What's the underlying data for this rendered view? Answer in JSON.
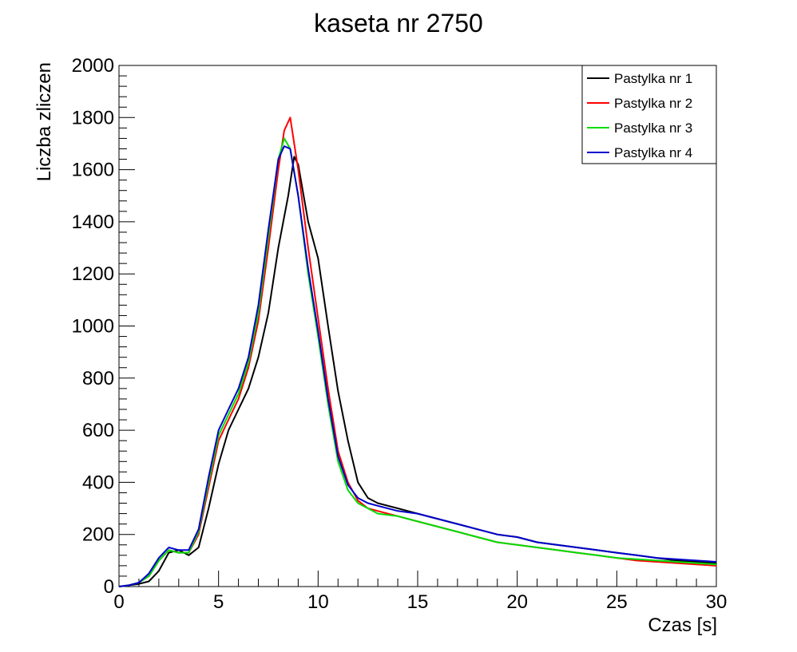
{
  "chart_data": {
    "type": "line",
    "title": "kaseta nr 2750",
    "xlabel": "Czas [s]",
    "ylabel": "Liczba zliczen",
    "xlim": [
      0,
      30
    ],
    "ylim": [
      0,
      2000
    ],
    "x_ticks": [
      0,
      5,
      10,
      15,
      20,
      25,
      30
    ],
    "y_ticks": [
      0,
      200,
      400,
      600,
      800,
      1000,
      1200,
      1400,
      1600,
      1800,
      2000
    ],
    "grid": false,
    "legend_position": "top-right",
    "series": [
      {
        "name": "Pastylka nr 1",
        "color": "#000000",
        "x": [
          0,
          0.5,
          1,
          1.5,
          2,
          2.5,
          3,
          3.5,
          4,
          4.5,
          5,
          5.5,
          6,
          6.5,
          7,
          7.5,
          8,
          8.5,
          8.8,
          9,
          9.5,
          10,
          10.5,
          11,
          11.5,
          12,
          12.5,
          13,
          14,
          15,
          16,
          17,
          18,
          19,
          20,
          21,
          22,
          23,
          24,
          25,
          26,
          27,
          28,
          29,
          30
        ],
        "y": [
          0,
          5,
          10,
          20,
          60,
          130,
          140,
          120,
          150,
          300,
          470,
          600,
          680,
          760,
          880,
          1050,
          1300,
          1500,
          1650,
          1620,
          1400,
          1260,
          1000,
          750,
          560,
          400,
          340,
          320,
          300,
          280,
          260,
          240,
          220,
          200,
          190,
          170,
          160,
          150,
          140,
          130,
          120,
          110,
          100,
          95,
          90
        ]
      },
      {
        "name": "Pastylka nr 2",
        "color": "#ff0000",
        "x": [
          0,
          0.5,
          1,
          1.5,
          2,
          2.5,
          3,
          3.5,
          4,
          4.5,
          5,
          5.5,
          6,
          6.5,
          7,
          7.5,
          8,
          8.3,
          8.6,
          9,
          9.5,
          10,
          10.5,
          11,
          11.5,
          12,
          12.5,
          13,
          14,
          15,
          16,
          17,
          18,
          19,
          20,
          21,
          22,
          23,
          24,
          25,
          26,
          27,
          28,
          29,
          30
        ],
        "y": [
          0,
          5,
          15,
          40,
          100,
          140,
          130,
          130,
          200,
          380,
          560,
          640,
          720,
          840,
          1020,
          1300,
          1600,
          1750,
          1800,
          1600,
          1300,
          1030,
          760,
          520,
          400,
          330,
          300,
          290,
          270,
          250,
          230,
          210,
          190,
          170,
          160,
          150,
          140,
          130,
          120,
          110,
          100,
          95,
          90,
          85,
          80
        ]
      },
      {
        "name": "Pastylka nr 3",
        "color": "#00dd00",
        "x": [
          0,
          0.5,
          1,
          1.5,
          2,
          2.5,
          3,
          3.5,
          4,
          4.5,
          5,
          5.5,
          6,
          6.5,
          7,
          7.5,
          8,
          8.3,
          8.6,
          9,
          9.5,
          10,
          10.5,
          11,
          11.5,
          12,
          12.5,
          13,
          14,
          15,
          16,
          17,
          18,
          19,
          20,
          21,
          22,
          23,
          24,
          25,
          26,
          27,
          28,
          29,
          30
        ],
        "y": [
          0,
          5,
          15,
          40,
          100,
          140,
          130,
          130,
          210,
          400,
          580,
          660,
          740,
          860,
          1050,
          1340,
          1640,
          1720,
          1680,
          1500,
          1200,
          960,
          700,
          480,
          370,
          320,
          300,
          280,
          270,
          250,
          230,
          210,
          190,
          170,
          160,
          150,
          140,
          130,
          120,
          110,
          105,
          100,
          95,
          90,
          85
        ]
      },
      {
        "name": "Pastylka nr 4",
        "color": "#0000cc",
        "x": [
          0,
          0.5,
          1,
          1.5,
          2,
          2.5,
          3,
          3.5,
          4,
          4.5,
          5,
          5.5,
          6,
          6.5,
          7,
          7.5,
          8,
          8.3,
          8.6,
          9,
          9.5,
          10,
          10.5,
          11,
          11.5,
          12,
          12.5,
          13,
          14,
          15,
          16,
          17,
          18,
          19,
          20,
          21,
          22,
          23,
          24,
          25,
          26,
          27,
          28,
          29,
          30
        ],
        "y": [
          0,
          5,
          15,
          50,
          110,
          150,
          140,
          140,
          220,
          420,
          600,
          680,
          760,
          880,
          1080,
          1370,
          1640,
          1690,
          1680,
          1500,
          1220,
          980,
          720,
          500,
          390,
          340,
          320,
          310,
          290,
          280,
          260,
          240,
          220,
          200,
          190,
          170,
          160,
          150,
          140,
          130,
          120,
          110,
          105,
          100,
          95
        ]
      }
    ]
  }
}
